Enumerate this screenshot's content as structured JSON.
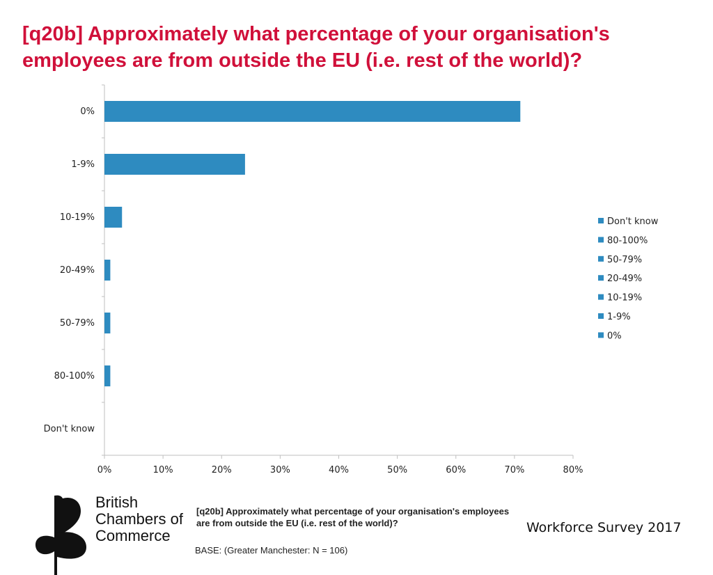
{
  "header": {
    "title": "[q20b] Approximately what percentage of your organisation's employees are from outside the EU (i.e. rest of the world)?"
  },
  "chart_data": {
    "type": "bar",
    "orientation": "horizontal",
    "categories": [
      "0%",
      "1-9%",
      "10-19%",
      "20-49%",
      "50-79%",
      "80-100%",
      "Don't know"
    ],
    "values": [
      71,
      24,
      3,
      1,
      1,
      1,
      0
    ],
    "xlim": [
      0,
      80
    ],
    "xticks": [
      0,
      10,
      20,
      30,
      40,
      50,
      60,
      70,
      80
    ],
    "xtick_labels": [
      "0%",
      "10%",
      "20%",
      "30%",
      "40%",
      "50%",
      "60%",
      "70%",
      "80%"
    ],
    "legend": [
      "Don't know",
      "80-100%",
      "50-79%",
      "20-49%",
      "10-19%",
      "1-9%",
      "0%"
    ],
    "legend_position": "right",
    "color": "#2e8bc0",
    "grid": false
  },
  "footer": {
    "logo_lines": [
      "British",
      "Chambers of",
      "Commerce"
    ],
    "question": "[q20b] Approximately what percentage of your organisation's employees are from outside the EU (i.e. rest of the world)?",
    "base": "BASE: (Greater Manchester: N = 106)",
    "survey": "Workforce Survey 2017"
  }
}
